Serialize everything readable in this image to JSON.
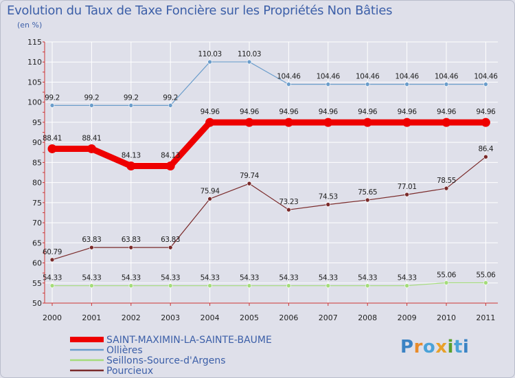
{
  "chart_data": {
    "type": "line",
    "title": "Evolution du Taux de Taxe Foncière sur les Propriétés Non Bâties",
    "ylabel": "(en %)",
    "xlabel": "",
    "x": [
      "2000",
      "2001",
      "2002",
      "2003",
      "2004",
      "2005",
      "2006",
      "2007",
      "2008",
      "2009",
      "2010",
      "2011"
    ],
    "ylim": [
      50,
      115
    ],
    "yticks": [
      50,
      55,
      60,
      65,
      70,
      75,
      80,
      85,
      90,
      95,
      100,
      105,
      110,
      115
    ],
    "grid": true,
    "series": [
      {
        "name": "SAINT-MAXIMIN-LA-SAINTE-BAUME",
        "color": "#ee0000",
        "values": [
          88.41,
          88.41,
          84.13,
          84.13,
          94.96,
          94.96,
          94.96,
          94.96,
          94.96,
          94.96,
          94.96,
          94.96
        ]
      },
      {
        "name": "Ollières",
        "color": "#6b9dcb",
        "values": [
          99.2,
          99.2,
          99.2,
          99.2,
          110.03,
          110.03,
          104.46,
          104.46,
          104.46,
          104.46,
          104.46,
          104.46
        ]
      },
      {
        "name": "Seillons-Source-d'Argens",
        "color": "#a4dc7a",
        "values": [
          54.33,
          54.33,
          54.33,
          54.33,
          54.33,
          54.33,
          54.33,
          54.33,
          54.33,
          54.33,
          55.06,
          55.06
        ]
      },
      {
        "name": "Pourcieux",
        "color": "#7a2a2a",
        "values": [
          60.79,
          63.83,
          63.83,
          63.83,
          75.94,
          79.74,
          73.23,
          74.53,
          75.65,
          77.01,
          78.55,
          86.4
        ]
      }
    ]
  },
  "logo": {
    "text": "Proxiti",
    "letters": [
      "P",
      "r",
      "o",
      "x",
      "i",
      "t",
      "i"
    ],
    "colors": [
      "#3b83c4",
      "#e98b2a",
      "#4aa2d8",
      "#e8a12a",
      "#5aa02c",
      "#4aa2d8",
      "#3b83c4"
    ]
  }
}
